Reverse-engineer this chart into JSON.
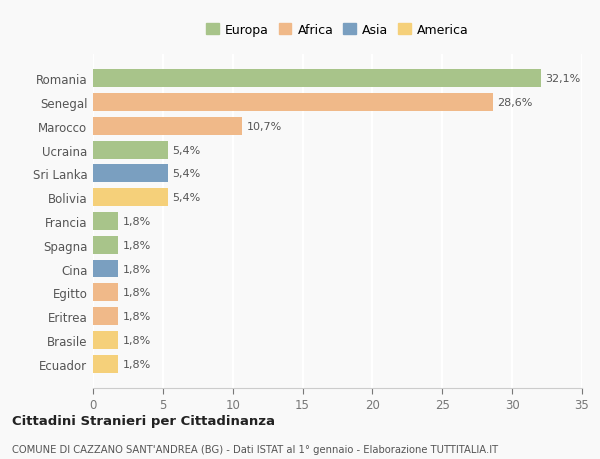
{
  "categories": [
    "Romania",
    "Senegal",
    "Marocco",
    "Ucraina",
    "Sri Lanka",
    "Bolivia",
    "Francia",
    "Spagna",
    "Cina",
    "Egitto",
    "Eritrea",
    "Brasile",
    "Ecuador"
  ],
  "values": [
    32.1,
    28.6,
    10.7,
    5.4,
    5.4,
    5.4,
    1.8,
    1.8,
    1.8,
    1.8,
    1.8,
    1.8,
    1.8
  ],
  "labels": [
    "32,1%",
    "28,6%",
    "10,7%",
    "5,4%",
    "5,4%",
    "5,4%",
    "1,8%",
    "1,8%",
    "1,8%",
    "1,8%",
    "1,8%",
    "1,8%",
    "1,8%"
  ],
  "colors": [
    "#a8c48a",
    "#f0b989",
    "#f0b989",
    "#a8c48a",
    "#7a9fc0",
    "#f5d07a",
    "#a8c48a",
    "#a8c48a",
    "#7a9fc0",
    "#f0b989",
    "#f0b989",
    "#f5d07a",
    "#f5d07a"
  ],
  "legend_labels": [
    "Europa",
    "Africa",
    "Asia",
    "America"
  ],
  "legend_colors": [
    "#a8c48a",
    "#f0b989",
    "#7a9fc0",
    "#f5d07a"
  ],
  "title": "Cittadini Stranieri per Cittadinanza",
  "subtitle": "COMUNE DI CAZZANO SANT'ANDREA (BG) - Dati ISTAT al 1° gennaio - Elaborazione TUTTITALIA.IT",
  "xlim": [
    0,
    35
  ],
  "xticks": [
    0,
    5,
    10,
    15,
    20,
    25,
    30,
    35
  ],
  "background_color": "#f9f9f9",
  "grid_color": "#ffffff",
  "bar_height": 0.75
}
